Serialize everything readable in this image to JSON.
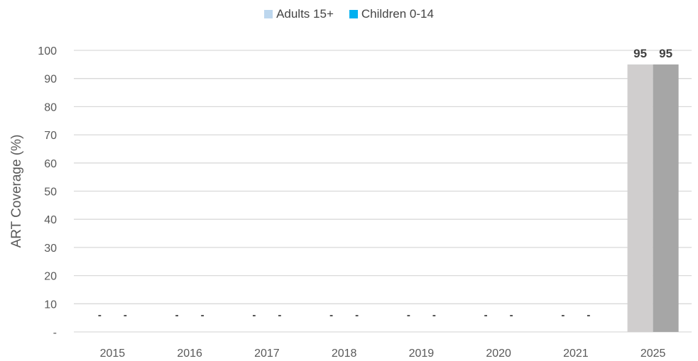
{
  "chart_data": {
    "type": "bar",
    "title": "",
    "xlabel": "",
    "ylabel": "ART Coverage (%)",
    "ylim": [
      0,
      100
    ],
    "yticks": [
      "-",
      "10",
      "20",
      "30",
      "40",
      "50",
      "60",
      "70",
      "80",
      "90",
      "100"
    ],
    "grid": true,
    "legend_position": "top-center",
    "categories": [
      "2015",
      "2016",
      "2017",
      "2018",
      "2019",
      "2020",
      "2021",
      "2025"
    ],
    "series": [
      {
        "name": "Adults 15+",
        "legend_color": "#bdd7ee",
        "bar_color": "#d0cece",
        "values": [
          null,
          null,
          null,
          null,
          null,
          null,
          null,
          95
        ],
        "labels": [
          "-",
          "-",
          "-",
          "-",
          "-",
          "-",
          "-",
          "95"
        ]
      },
      {
        "name": "Children 0-14",
        "legend_color": "#00b0f0",
        "bar_color": "#a6a6a6",
        "values": [
          null,
          null,
          null,
          null,
          null,
          null,
          null,
          95
        ],
        "labels": [
          "-",
          "-",
          "-",
          "-",
          "-",
          "-",
          "-",
          "95"
        ]
      }
    ]
  }
}
